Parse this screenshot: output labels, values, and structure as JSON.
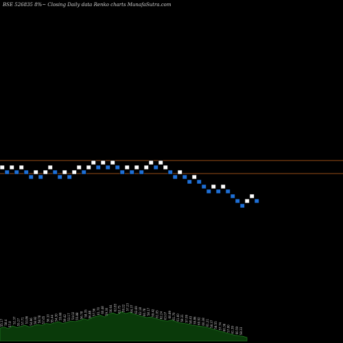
{
  "chart_data": {
    "type": "renko",
    "title": "BSE 526835 8%~  Closing Daily data  Renko  charts MunafaSutra.com",
    "colors": {
      "background": "#000000",
      "up_brick": "#ffffff",
      "down_brick": "#1e6fd6",
      "reference_line": "#c8641e",
      "volume_fill": "#0a3a0a",
      "volume_stroke": "#1f7a1f"
    },
    "reference_lines": [
      1,
      2
    ],
    "bricks": [
      {
        "dir": "up",
        "level": 14
      },
      {
        "dir": "down",
        "level": 13
      },
      {
        "dir": "up",
        "level": 14
      },
      {
        "dir": "down",
        "level": 13
      },
      {
        "dir": "up",
        "level": 14
      },
      {
        "dir": "down",
        "level": 13
      },
      {
        "dir": "down",
        "level": 12
      },
      {
        "dir": "up",
        "level": 13
      },
      {
        "dir": "down",
        "level": 12
      },
      {
        "dir": "up",
        "level": 13
      },
      {
        "dir": "up",
        "level": 14
      },
      {
        "dir": "down",
        "level": 13
      },
      {
        "dir": "down",
        "level": 12
      },
      {
        "dir": "up",
        "level": 13
      },
      {
        "dir": "down",
        "level": 12
      },
      {
        "dir": "up",
        "level": 13
      },
      {
        "dir": "up",
        "level": 14
      },
      {
        "dir": "down",
        "level": 13
      },
      {
        "dir": "up",
        "level": 14
      },
      {
        "dir": "up",
        "level": 15
      },
      {
        "dir": "down",
        "level": 14
      },
      {
        "dir": "up",
        "level": 15
      },
      {
        "dir": "down",
        "level": 14
      },
      {
        "dir": "up",
        "level": 15
      },
      {
        "dir": "down",
        "level": 14
      },
      {
        "dir": "down",
        "level": 13
      },
      {
        "dir": "up",
        "level": 14
      },
      {
        "dir": "down",
        "level": 13
      },
      {
        "dir": "up",
        "level": 14
      },
      {
        "dir": "down",
        "level": 13
      },
      {
        "dir": "up",
        "level": 14
      },
      {
        "dir": "up",
        "level": 15
      },
      {
        "dir": "down",
        "level": 14
      },
      {
        "dir": "up",
        "level": 15
      },
      {
        "dir": "up",
        "level": 14
      },
      {
        "dir": "down",
        "level": 13
      },
      {
        "dir": "down",
        "level": 12
      },
      {
        "dir": "up",
        "level": 13
      },
      {
        "dir": "down",
        "level": 12
      },
      {
        "dir": "down",
        "level": 11
      },
      {
        "dir": "up",
        "level": 12
      },
      {
        "dir": "down",
        "level": 11
      },
      {
        "dir": "down",
        "level": 10
      },
      {
        "dir": "down",
        "level": 9
      },
      {
        "dir": "up",
        "level": 10
      },
      {
        "dir": "down",
        "level": 9
      },
      {
        "dir": "up",
        "level": 10
      },
      {
        "dir": "down",
        "level": 9
      },
      {
        "dir": "down",
        "level": 8
      },
      {
        "dir": "down",
        "level": 7
      },
      {
        "dir": "down",
        "level": 6
      },
      {
        "dir": "up",
        "level": 7
      },
      {
        "dir": "up",
        "level": 8
      },
      {
        "dir": "down",
        "level": 7
      }
    ],
    "volume_profile": [
      22,
      24,
      21,
      26,
      23,
      25,
      27,
      24,
      26,
      28,
      27,
      30,
      29,
      31,
      33,
      30,
      32,
      34,
      33,
      35,
      38,
      36,
      40,
      42,
      44,
      41,
      46,
      48,
      45,
      50,
      47,
      49,
      46,
      44,
      42,
      40,
      41,
      39,
      37,
      35,
      34,
      36,
      33,
      31,
      30,
      29,
      27,
      26,
      25,
      24,
      22,
      20,
      18,
      16,
      14,
      12,
      10,
      9,
      8,
      6
    ],
    "volume_labels": [
      "55.17",
      "58.4",
      "57.8",
      "52.37",
      "55.27",
      "57.71",
      "53.86",
      "54.96",
      "56.92",
      "58.78",
      "57.65",
      "56.10",
      "55.44",
      "54.30",
      "55.66",
      "59.42",
      "53.17",
      "54.02",
      "55.88",
      "56.78",
      "58.35",
      "56.88",
      "57.56",
      "61.70",
      "60.48",
      "59.30",
      "56.64",
      "62.83",
      "63.75",
      "59.22",
      "57.23",
      "64.37",
      "63.69",
      "62.18",
      "60.78",
      "58.17",
      "59.42",
      "61.05",
      "62.24",
      "63.07",
      "60.89",
      "61.70",
      "61.60",
      "59.31",
      "57.09",
      "58.43",
      "59.86",
      "60.92",
      "60.38",
      "61.21",
      "58.37",
      "58.55",
      "57.74",
      "60.36",
      "57.80",
      "61.39",
      "60.59",
      "58.33"
    ]
  }
}
